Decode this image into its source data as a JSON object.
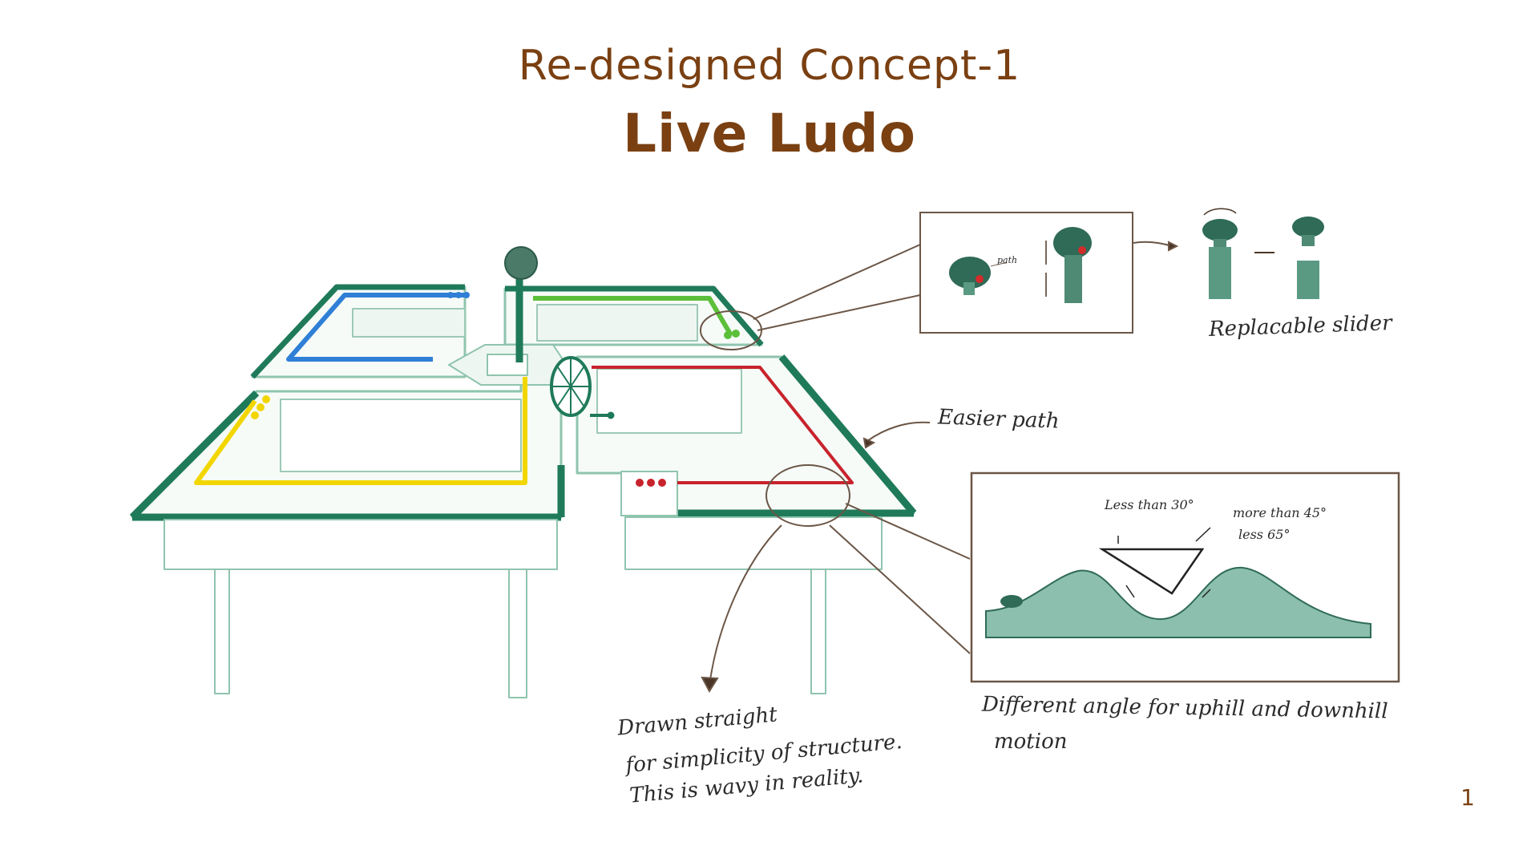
{
  "header": {
    "subtitle": "Re-designed Concept-1",
    "title": "Live Ludo"
  },
  "annotations": {
    "easier_path": "Easier path",
    "replacable_slider": "Replacable slider",
    "drawn_straight_line1": "Drawn straight",
    "drawn_straight_line2": "for simplicity of structure.",
    "drawn_straight_line3": "This is wavy in reality.",
    "angle_line1": "Different angle for uphill and downhill",
    "angle_line2": "motion",
    "less_than_30": "Less than 30°",
    "more_than_45": "more than 45°",
    "less_65": "less 65°",
    "path_label": "path"
  },
  "page_number": "1",
  "colors": {
    "title": "#7a4012",
    "table_green": "#1f7a5a",
    "track_blue": "#2f7fd6",
    "track_green": "#5cbf3a",
    "track_yellow": "#f2d600",
    "track_red": "#c8232c",
    "ink": "#4a3526"
  }
}
